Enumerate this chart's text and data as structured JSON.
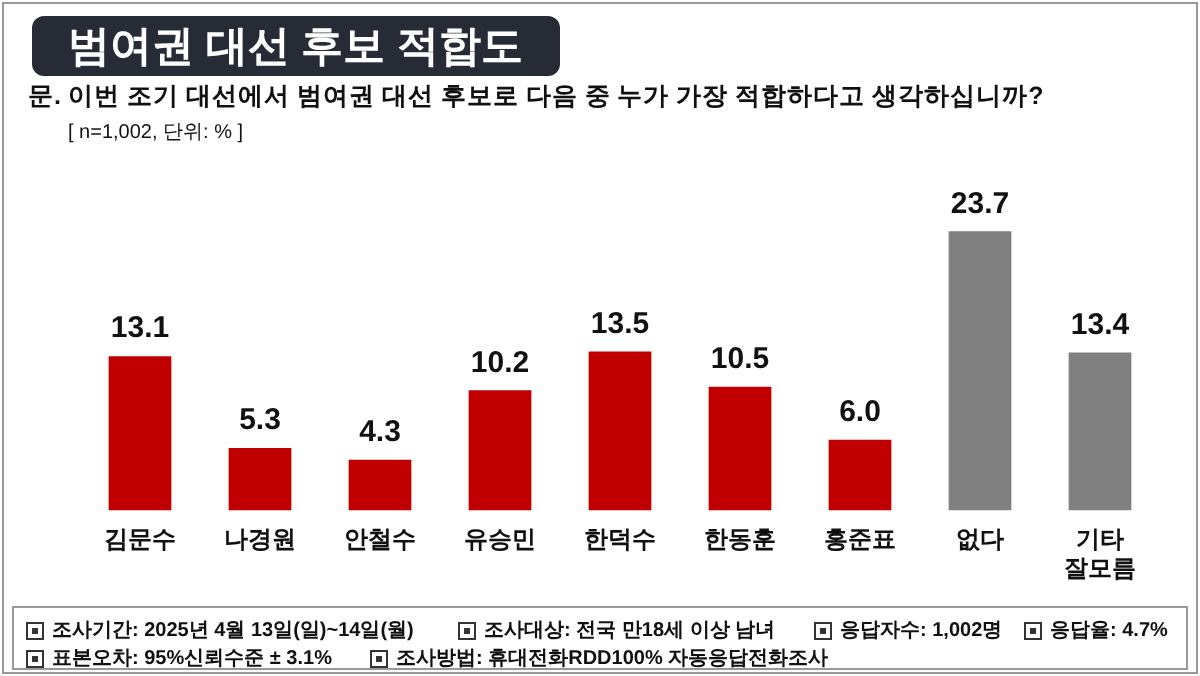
{
  "chart_data": {
    "type": "bar",
    "title": "범여권 대선 후보 적합도",
    "subtitle": "문. 이번 조기 대선에서 범여권 대선 후보로 다음 중 누가 가장 적합하다고 생각하십니까?",
    "categories": [
      "김문수",
      "나경원",
      "안철수",
      "유승민",
      "한덕수",
      "한동훈",
      "홍준표",
      "없다",
      "기타\n잘모름"
    ],
    "values": [
      13.1,
      5.3,
      4.3,
      10.2,
      13.5,
      10.5,
      6.0,
      23.7,
      13.4
    ],
    "value_labels": [
      "13.1",
      "5.3",
      "4.3",
      "10.2",
      "13.5",
      "10.5",
      "6.0",
      "23.7",
      "13.4"
    ],
    "colors": [
      "#c00000",
      "#c00000",
      "#c00000",
      "#c00000",
      "#c00000",
      "#c00000",
      "#c00000",
      "#808080",
      "#808080"
    ],
    "grid": false,
    "legend": false,
    "tick_labels": "x",
    "annotations": [
      "[ n=1,002, 단위: % ]",
      "조사기간: 2025년 4월 13일(일)~14일(월)",
      "조사대상: 전국 만18세 이상 남녀",
      "응답자수: 1,002명",
      "응답율: 4.7%",
      "표본오차: 95%신뢰수준 ± 3.1%",
      "조사방법: 휴대전화RDD100% 자동응답전화조사"
    ]
  }
}
